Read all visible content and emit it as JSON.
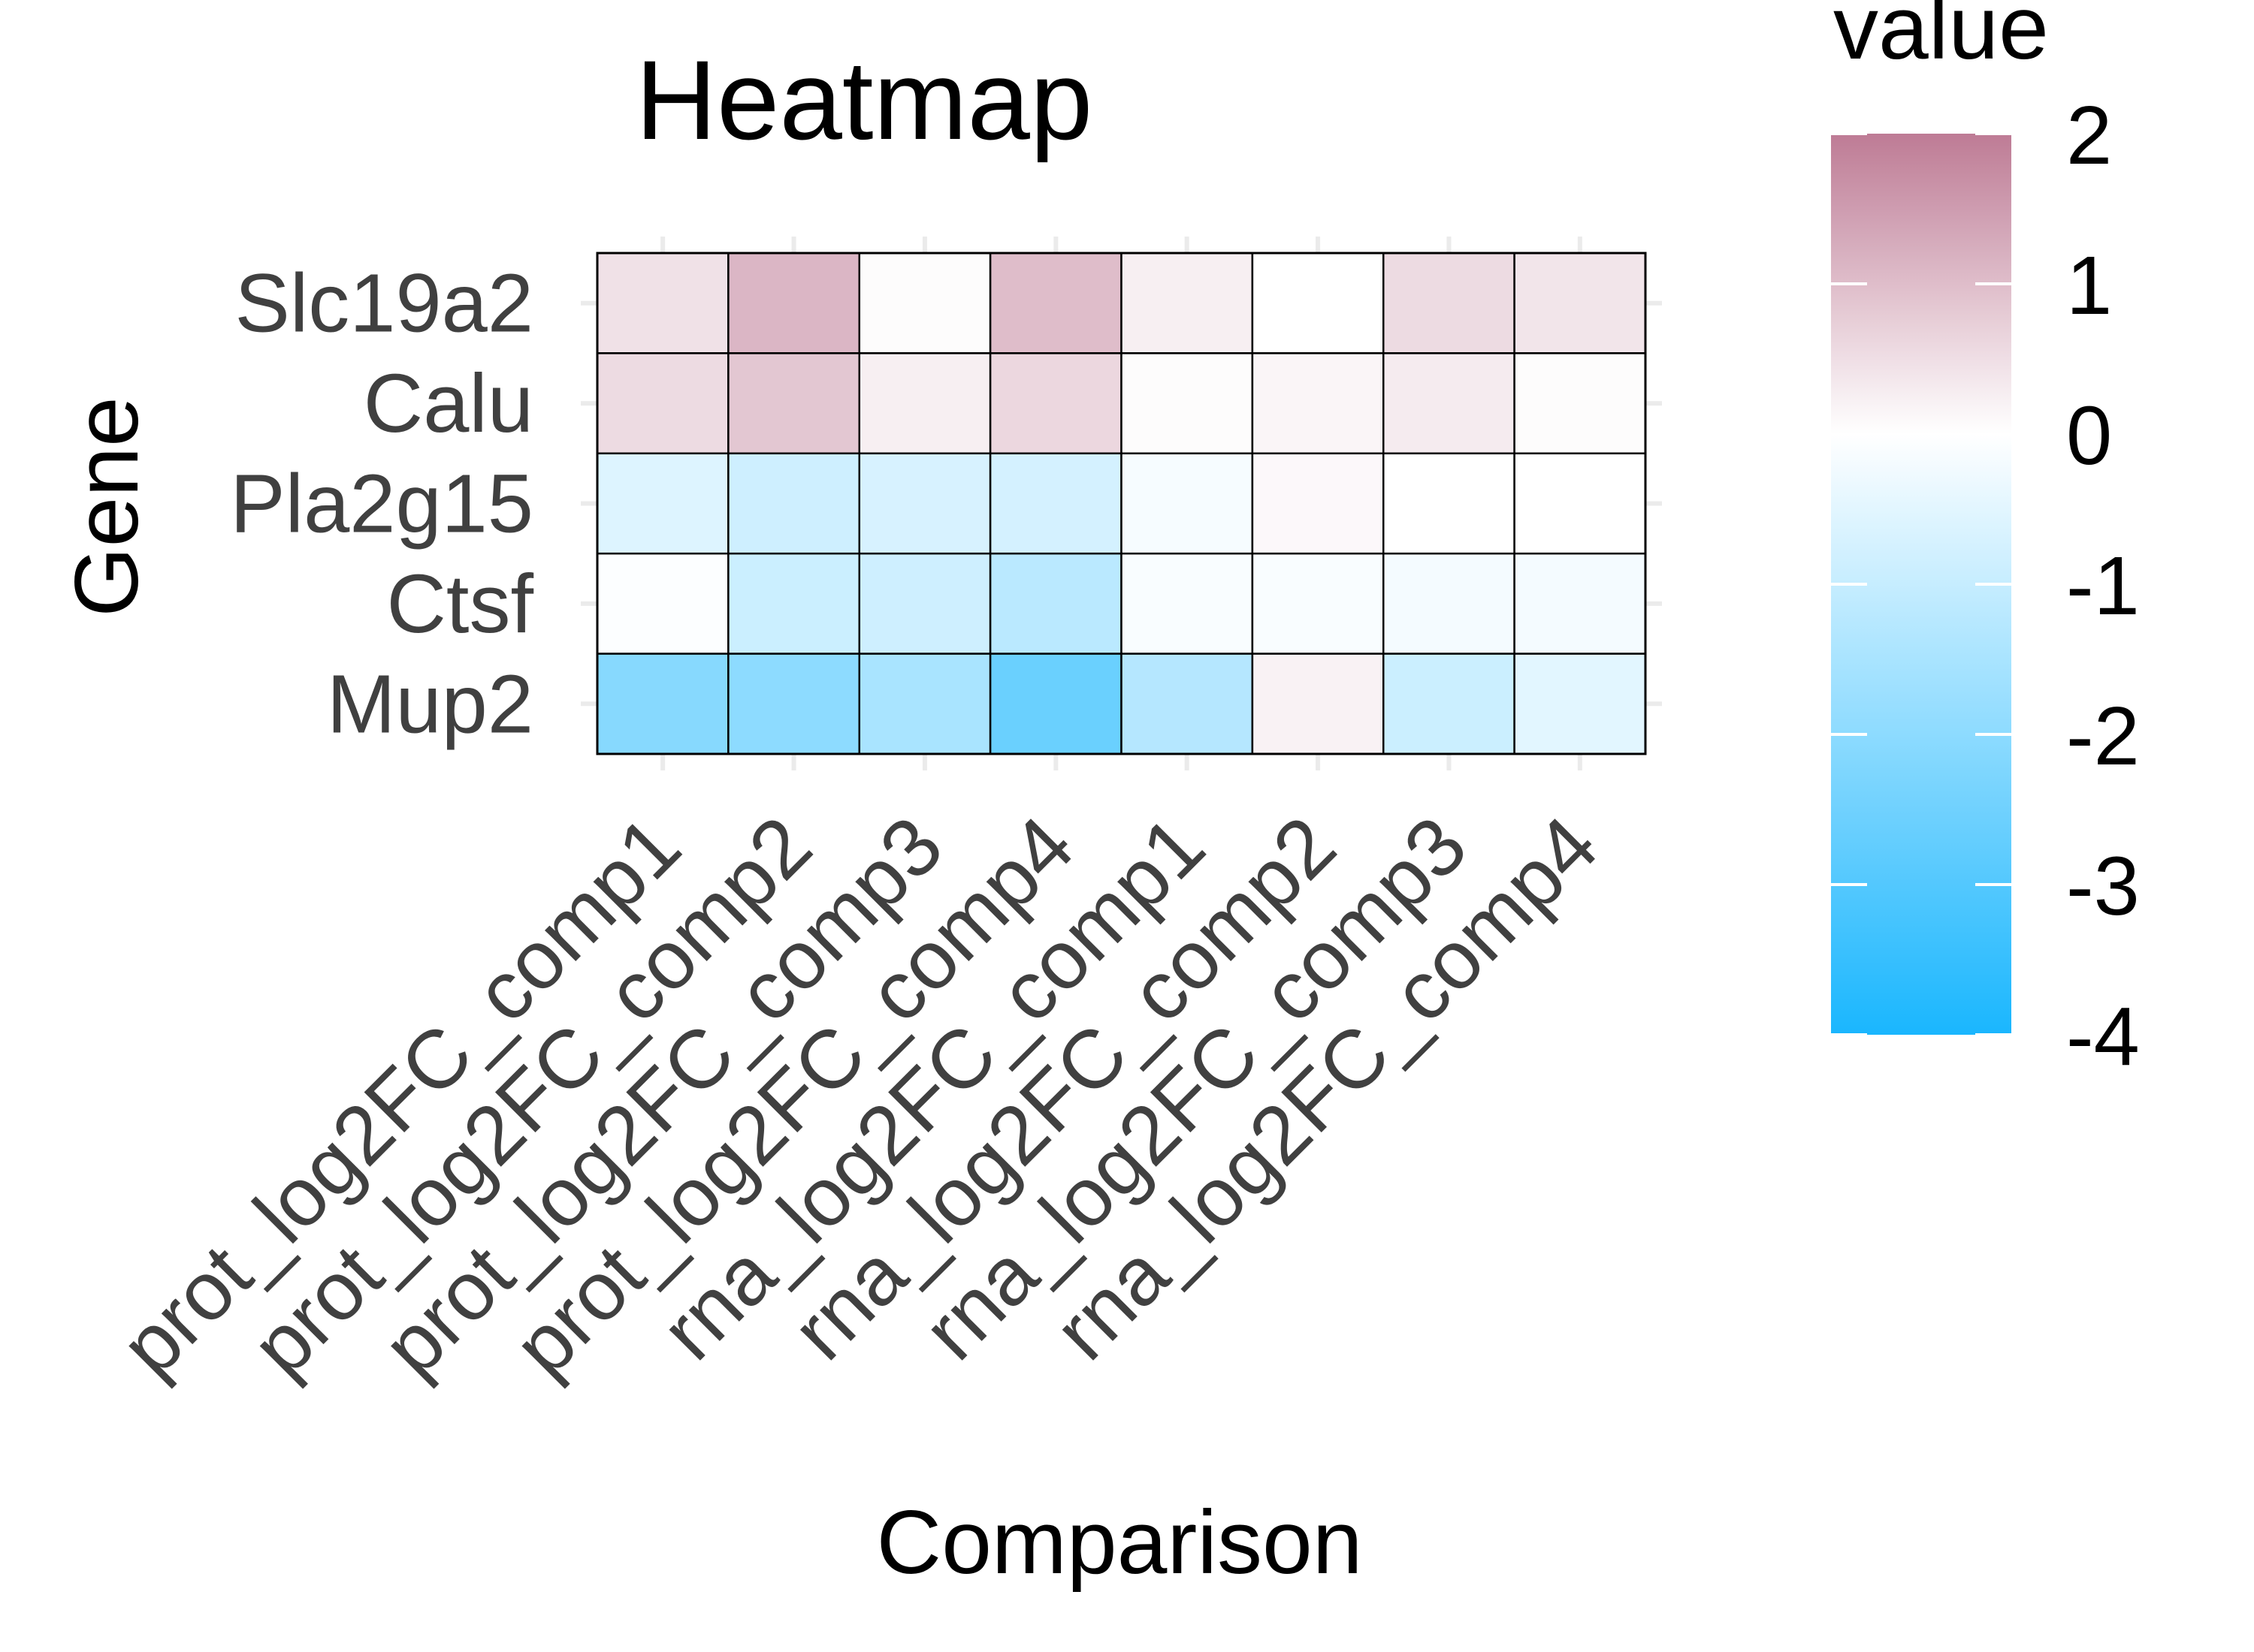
{
  "chart_data": {
    "type": "heatmap",
    "title": "Heatmap",
    "xlabel": "Comparison",
    "ylabel": "Gene",
    "x_categories": [
      "prot_log2FC_comp1",
      "prot_log2FC_comp2",
      "prot_log2FC_comp3",
      "prot_log2FC_comp4",
      "rna_log2FC_comp1",
      "rna_log2FC_comp2",
      "rna_log2FC_comp3",
      "rna_log2FC_comp4"
    ],
    "y_categories": [
      "Slc19a2",
      "Calu",
      "Pla2g15",
      "Ctsf",
      "Mup2"
    ],
    "values": [
      [
        0.45,
        1.1,
        0.05,
        1.0,
        0.25,
        0.0,
        0.55,
        0.4
      ],
      [
        0.55,
        0.85,
        0.25,
        0.6,
        0.05,
        0.15,
        0.3,
        0.05
      ],
      [
        -0.6,
        -0.85,
        -0.7,
        -0.75,
        -0.15,
        0.1,
        0.0,
        0.0
      ],
      [
        -0.05,
        -0.9,
        -0.85,
        -1.2,
        -0.1,
        -0.1,
        -0.2,
        -0.2
      ],
      [
        -2.1,
        -2.0,
        -1.5,
        -2.6,
        -1.3,
        0.2,
        -0.9,
        -0.5
      ]
    ],
    "legend": {
      "title": "value",
      "ticks": [
        2,
        1,
        0,
        -1,
        -2,
        -3,
        -4
      ],
      "range": [
        -4,
        2
      ],
      "position": "right"
    },
    "colors": {
      "high": "#be7b95",
      "mid": "#ffffff",
      "low": "#1ab6fe"
    },
    "grid": true
  }
}
